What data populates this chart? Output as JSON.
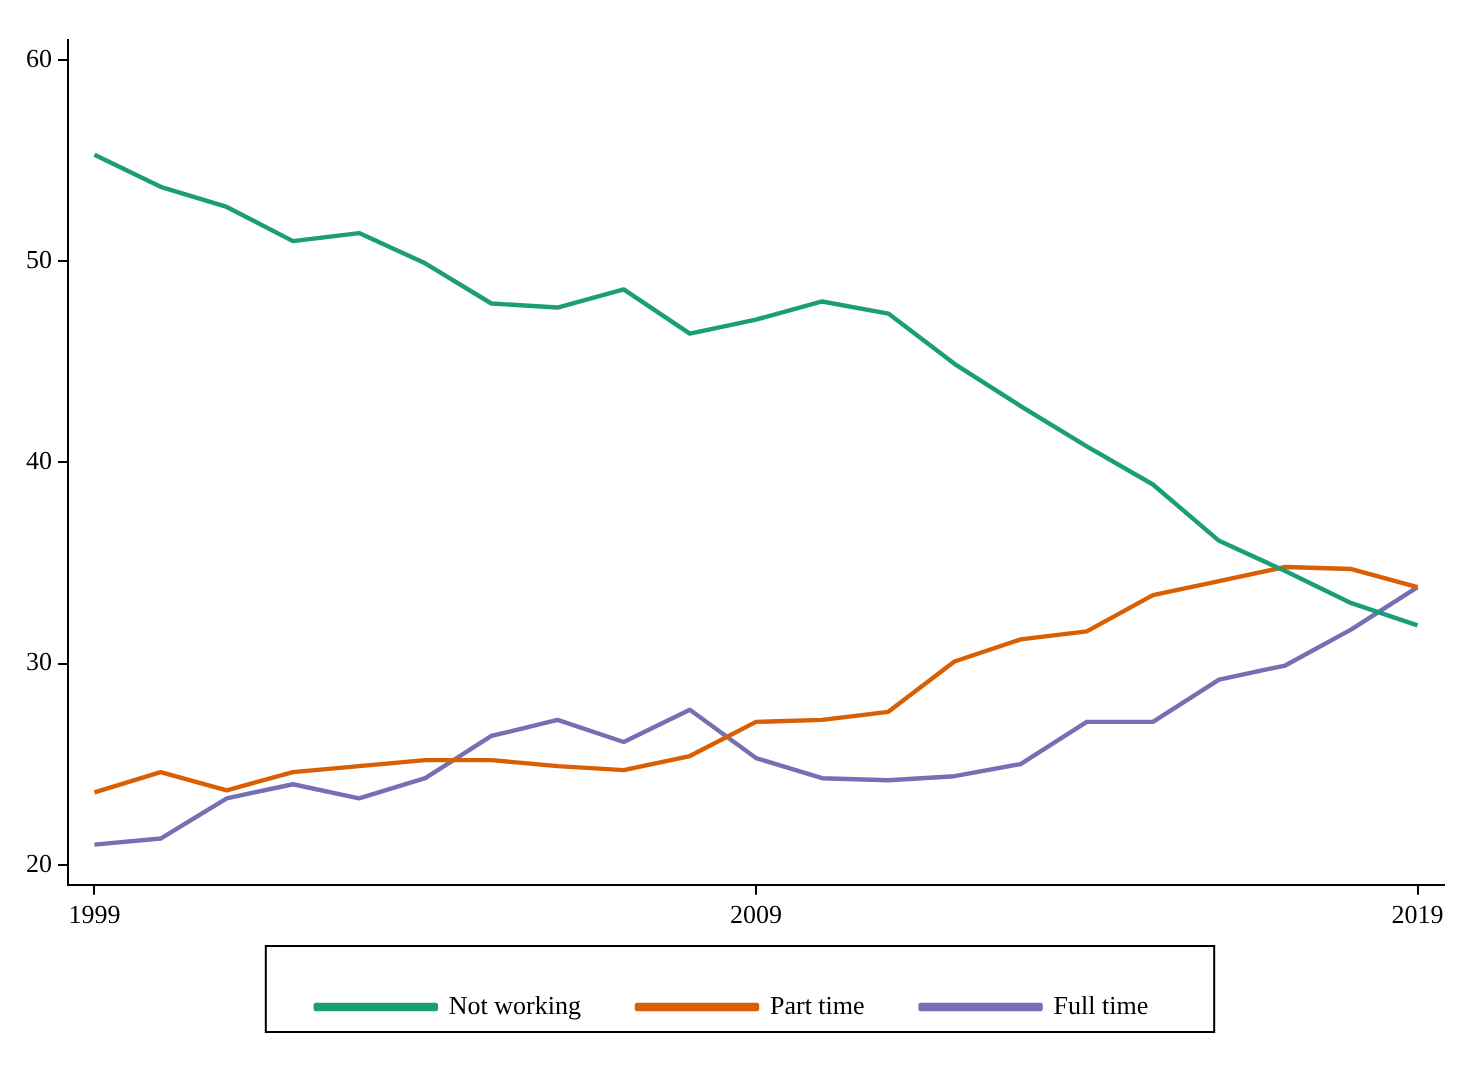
{
  "chart_data": {
    "type": "line",
    "x": [
      1999,
      2000,
      2001,
      2002,
      2003,
      2004,
      2005,
      2006,
      2007,
      2008,
      2009,
      2010,
      2011,
      2012,
      2013,
      2014,
      2015,
      2016,
      2017,
      2018,
      2019
    ],
    "series": [
      {
        "name": "Not working",
        "color": "#1b9e77",
        "values": [
          55.3,
          53.7,
          52.7,
          51.0,
          51.4,
          49.9,
          47.9,
          47.7,
          48.6,
          46.4,
          47.1,
          48.0,
          47.4,
          44.9,
          42.8,
          40.8,
          38.9,
          36.1,
          34.6,
          33.0,
          31.9
        ]
      },
      {
        "name": "Part time",
        "color": "#d95f02",
        "values": [
          23.6,
          24.6,
          23.7,
          24.6,
          24.9,
          25.2,
          25.2,
          24.9,
          24.7,
          25.4,
          27.1,
          27.2,
          27.6,
          30.1,
          31.2,
          31.6,
          33.4,
          34.1,
          34.8,
          34.7,
          33.8
        ]
      },
      {
        "name": "Full time",
        "color": "#7570b3",
        "values": [
          21.0,
          21.3,
          23.3,
          24.0,
          23.3,
          24.3,
          26.4,
          27.2,
          26.1,
          27.7,
          25.3,
          24.3,
          24.2,
          24.4,
          25.0,
          27.1,
          27.1,
          29.2,
          29.9,
          31.7,
          33.8
        ]
      }
    ],
    "xlim": [
      1998.6,
      2019.4
    ],
    "xticks": [
      1999,
      2009,
      2019
    ],
    "ylim": [
      19,
      61
    ],
    "yticks": [
      20,
      30,
      40,
      50,
      60
    ],
    "grid": false,
    "legend": "bottom",
    "marker": "none",
    "line_style": "solid"
  }
}
